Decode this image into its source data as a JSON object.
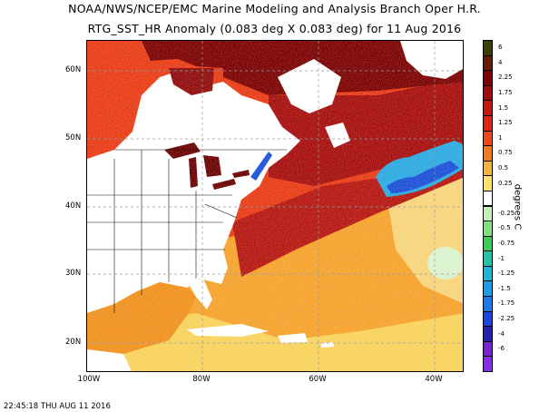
{
  "header": {
    "line1": "NOAA/NWS/NCEP/EMC Marine Modeling and Analysis Branch Oper H.R.",
    "line2": "RTG_SST_HR Anomaly (0.083 deg X 0.083 deg) for 11 Aug 2016"
  },
  "map": {
    "lon_labels": [
      "100W",
      "80W",
      "60W",
      "40W"
    ],
    "lat_labels": [
      "60N",
      "50N",
      "40N",
      "30N",
      "20N"
    ],
    "colors": {
      "land": "#ffffff",
      "border": "#000000",
      "warm_ocean": "#cc1a0f",
      "very_warm_ocean": "#8f0a0a",
      "hot_ocean": "#6a0000",
      "mild_warm_ocean": "#ee7a1c",
      "slight_warm_ocean": "#f5c842",
      "neutral_ocean": "#fff9dc",
      "cool_ocean": "#2ab3e0",
      "cold_ocean": "#1a4fd6",
      "lakes": "#6a0000"
    }
  },
  "colorbar": {
    "unit_label": "degrees C",
    "levels": [
      {
        "label": "6",
        "color": "#3f3f00"
      },
      {
        "label": "4",
        "color": "#6a1a06"
      },
      {
        "label": "2.25",
        "color": "#7f0000"
      },
      {
        "label": "1.75",
        "color": "#a50a0a"
      },
      {
        "label": "1.5",
        "color": "#c81610"
      },
      {
        "label": "1.25",
        "color": "#e22412"
      },
      {
        "label": "1",
        "color": "#f24418"
      },
      {
        "label": "0.75",
        "color": "#f57a1e"
      },
      {
        "label": "0.5",
        "color": "#f8b23a"
      },
      {
        "label": "0.25",
        "color": "#fde26c"
      },
      {
        "label": "",
        "color": "#ffffff"
      },
      {
        "label": "-0.25",
        "color": "#c4efb6"
      },
      {
        "label": "-0.5",
        "color": "#7fe27a"
      },
      {
        "label": "-0.75",
        "color": "#3ecc52"
      },
      {
        "label": "-1",
        "color": "#22c4a8"
      },
      {
        "label": "-1.25",
        "color": "#1ab8d8"
      },
      {
        "label": "-1.5",
        "color": "#1a9ce8"
      },
      {
        "label": "-1.75",
        "color": "#1a78f0"
      },
      {
        "label": "-2.25",
        "color": "#1a48e0"
      },
      {
        "label": "-4",
        "color": "#2222b0"
      },
      {
        "label": "-6",
        "color": "#7a20d8"
      },
      {
        "label": "",
        "color": "#8a2cf0"
      }
    ]
  },
  "footer": {
    "timestamp": "22:45:18  THU AUG 11 2016"
  }
}
